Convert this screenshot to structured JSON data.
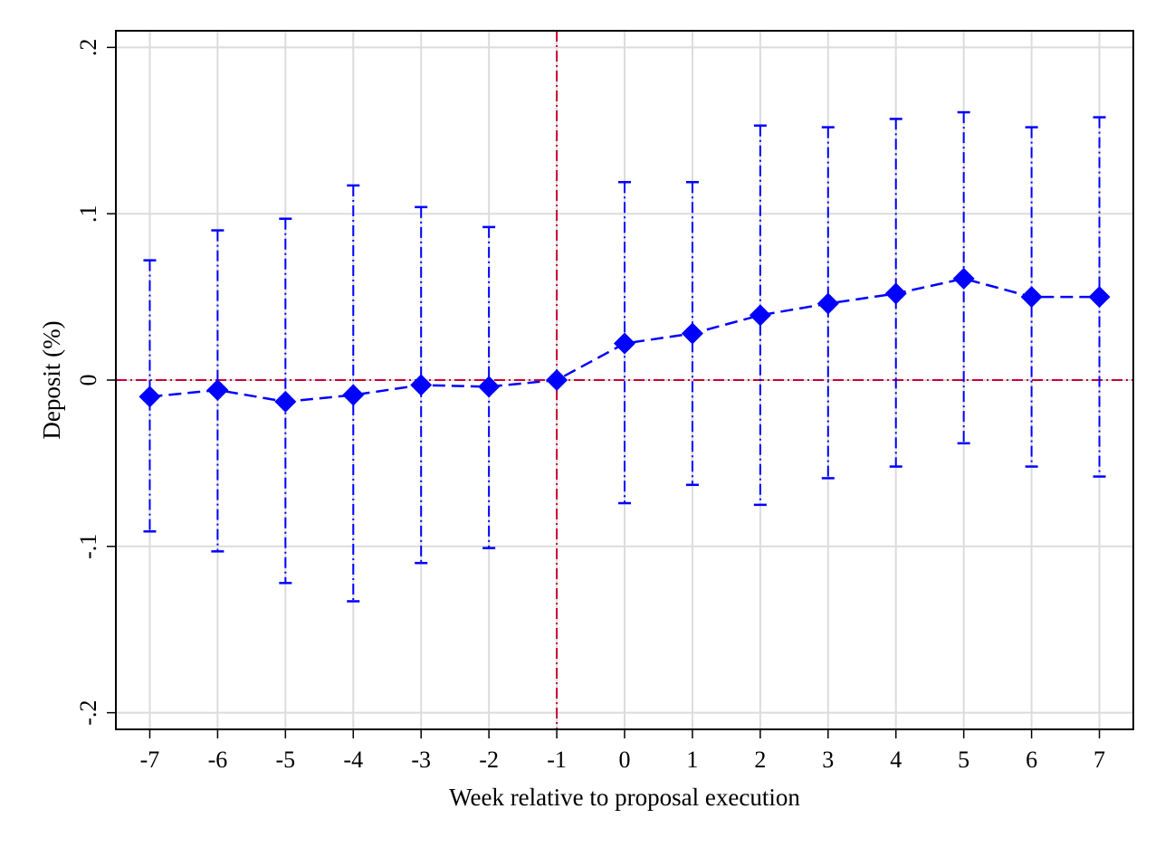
{
  "chart_data": {
    "type": "scatter",
    "title": "",
    "xlabel": "Week relative to proposal execution",
    "ylabel": "Deposit (%)",
    "xlim": [
      -7.5,
      7.5
    ],
    "ylim": [
      -0.21,
      0.21
    ],
    "x_ticks": [
      -7,
      -6,
      -5,
      -4,
      -3,
      -2,
      -1,
      0,
      1,
      2,
      3,
      4,
      5,
      6,
      7
    ],
    "x_tick_labels": [
      "-7",
      "-6",
      "-5",
      "-4",
      "-3",
      "-2",
      "-1",
      "0",
      "1",
      "2",
      "3",
      "4",
      "5",
      "6",
      "7"
    ],
    "y_ticks": [
      -0.2,
      -0.1,
      0,
      0.1,
      0.2
    ],
    "y_tick_labels": [
      "-.2",
      "-.1",
      "0",
      ".1",
      ".2"
    ],
    "grid": true,
    "reference_lines": {
      "x": -1,
      "y": 0,
      "color": "#cc0033"
    },
    "series_color": "#0000ff",
    "series": [
      {
        "x": [
          -7,
          -6,
          -5,
          -4,
          -3,
          -2,
          -1,
          0,
          1,
          2,
          3,
          4,
          5,
          6,
          7
        ],
        "estimate": [
          -0.01,
          -0.006,
          -0.013,
          -0.009,
          -0.003,
          -0.004,
          0.0,
          0.022,
          0.028,
          0.039,
          0.046,
          0.052,
          0.061,
          0.05,
          0.05
        ],
        "ci_low": [
          -0.091,
          -0.103,
          -0.122,
          -0.133,
          -0.11,
          -0.101,
          0.0,
          -0.074,
          -0.063,
          -0.075,
          -0.059,
          -0.052,
          -0.038,
          -0.052,
          -0.058
        ],
        "ci_high": [
          0.072,
          0.09,
          0.097,
          0.117,
          0.104,
          0.092,
          0.0,
          0.119,
          0.119,
          0.153,
          0.152,
          0.157,
          0.161,
          0.152,
          0.158
        ]
      }
    ]
  }
}
